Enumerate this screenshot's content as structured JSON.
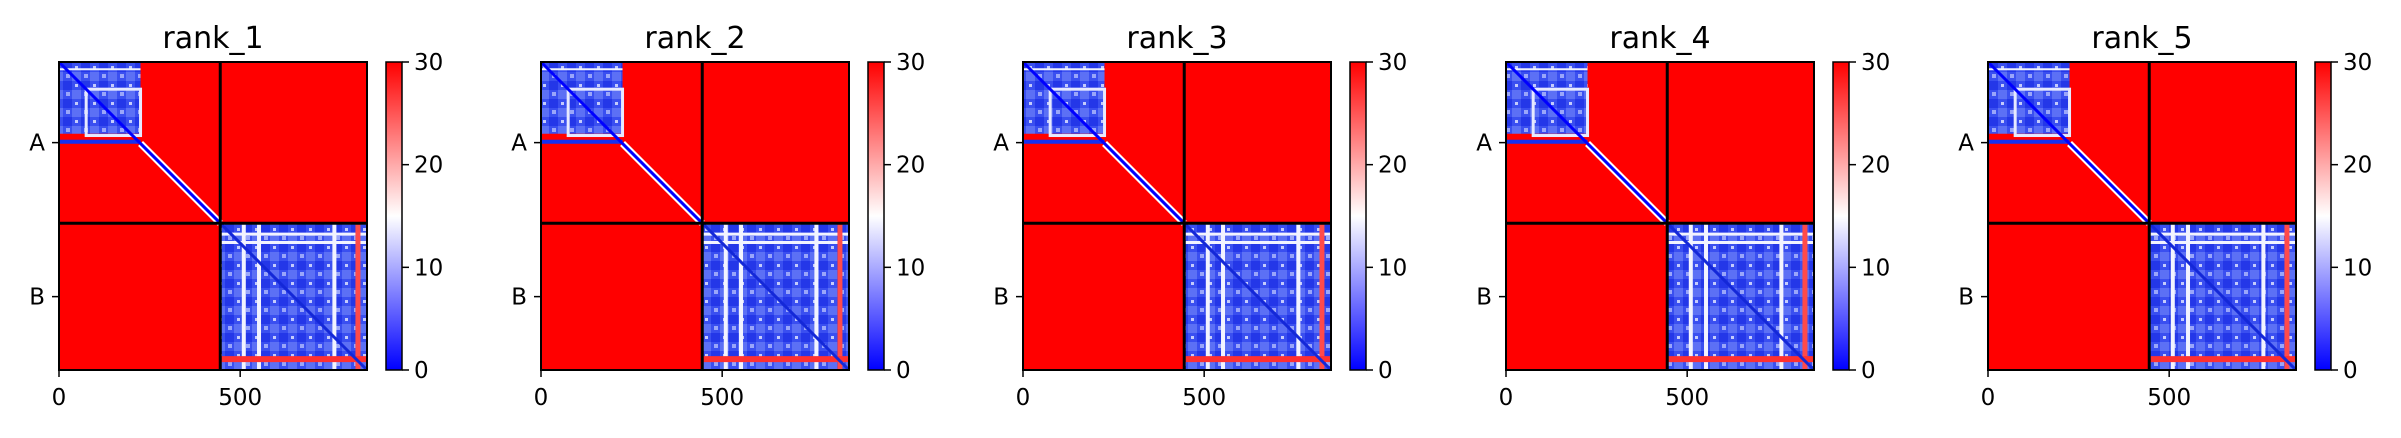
{
  "colors": {
    "low": "#0000ff",
    "mid": "#ffffff",
    "high": "#ff0000",
    "divider": "#000000"
  },
  "chart_data": [
    {
      "type": "heatmap",
      "title": "rank_1",
      "xlabel": "",
      "ylabel": "",
      "x_ticks": [
        "0",
        "500"
      ],
      "y_tick_labels": [
        "A",
        "B"
      ],
      "colorbar_ticks": [
        "0",
        "10",
        "20",
        "30"
      ],
      "colorbar_range": [
        0,
        30
      ],
      "colormap": "bwr",
      "chains": [
        "A",
        "B"
      ],
      "chain_boundary_residue": 445,
      "residue_range": [
        0,
        850
      ],
      "block_pattern": [
        [
          "low",
          "high"
        ],
        [
          "high",
          "low"
        ]
      ]
    },
    {
      "type": "heatmap",
      "title": "rank_2",
      "xlabel": "",
      "ylabel": "",
      "x_ticks": [
        "0",
        "500"
      ],
      "y_tick_labels": [
        "A",
        "B"
      ],
      "colorbar_ticks": [
        "0",
        "10",
        "20",
        "30"
      ],
      "colorbar_range": [
        0,
        30
      ],
      "colormap": "bwr",
      "chains": [
        "A",
        "B"
      ],
      "chain_boundary_residue": 445,
      "residue_range": [
        0,
        850
      ],
      "block_pattern": [
        [
          "low",
          "high"
        ],
        [
          "high",
          "low"
        ]
      ]
    },
    {
      "type": "heatmap",
      "title": "rank_3",
      "xlabel": "",
      "ylabel": "",
      "x_ticks": [
        "0",
        "500"
      ],
      "y_tick_labels": [
        "A",
        "B"
      ],
      "colorbar_ticks": [
        "0",
        "10",
        "20",
        "30"
      ],
      "colorbar_range": [
        0,
        30
      ],
      "colormap": "bwr",
      "chains": [
        "A",
        "B"
      ],
      "chain_boundary_residue": 445,
      "residue_range": [
        0,
        850
      ],
      "block_pattern": [
        [
          "low",
          "high"
        ],
        [
          "high",
          "low"
        ]
      ]
    },
    {
      "type": "heatmap",
      "title": "rank_4",
      "xlabel": "",
      "ylabel": "",
      "x_ticks": [
        "0",
        "500"
      ],
      "y_tick_labels": [
        "A",
        "B"
      ],
      "colorbar_ticks": [
        "0",
        "10",
        "20",
        "30"
      ],
      "colorbar_range": [
        0,
        30
      ],
      "colormap": "bwr",
      "chains": [
        "A",
        "B"
      ],
      "chain_boundary_residue": 445,
      "residue_range": [
        0,
        850
      ],
      "block_pattern": [
        [
          "low",
          "high"
        ],
        [
          "high",
          "low"
        ]
      ]
    },
    {
      "type": "heatmap",
      "title": "rank_5",
      "xlabel": "",
      "ylabel": "",
      "x_ticks": [
        "0",
        "500"
      ],
      "y_tick_labels": [
        "A",
        "B"
      ],
      "colorbar_ticks": [
        "0",
        "10",
        "20",
        "30"
      ],
      "colorbar_range": [
        0,
        30
      ],
      "colormap": "bwr",
      "chains": [
        "A",
        "B"
      ],
      "chain_boundary_residue": 445,
      "residue_range": [
        0,
        850
      ],
      "block_pattern": [
        [
          "low",
          "high"
        ],
        [
          "high",
          "low"
        ]
      ]
    }
  ]
}
